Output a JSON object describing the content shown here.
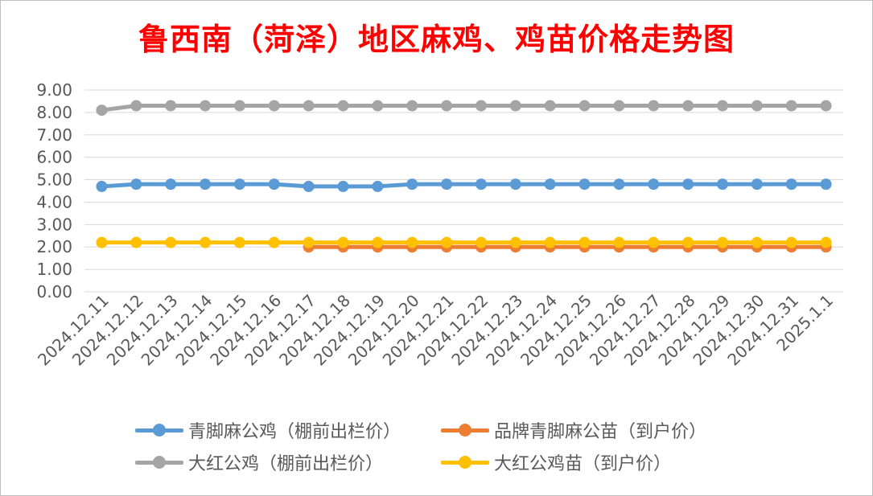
{
  "title": "鲁西南（菏泽）地区麻鸡、鸡苗价格走势图",
  "chart_data": {
    "type": "line",
    "title": "鲁西南（菏泽）地区麻鸡、鸡苗价格走势图",
    "xlabel": "",
    "ylabel": "",
    "ylim": [
      0,
      9
    ],
    "yticks": [
      "0.00",
      "1.00",
      "2.00",
      "3.00",
      "4.00",
      "5.00",
      "6.00",
      "7.00",
      "8.00",
      "9.00"
    ],
    "grid": true,
    "legend_position": "bottom",
    "categories": [
      "2024.12.11",
      "2024.12.12",
      "2024.12.13",
      "2024.12.14",
      "2024.12.15",
      "2024.12.16",
      "2024.12.17",
      "2024.12.18",
      "2024.12.19",
      "2024.12.20",
      "2024.12.21",
      "2024.12.22",
      "2024.12.23",
      "2024.12.24",
      "2024.12.25",
      "2024.12.26",
      "2024.12.27",
      "2024.12.28",
      "2024.12.29",
      "2024.12.30",
      "2024.12.31",
      "2025.1.1"
    ],
    "series": [
      {
        "name": "青脚麻公鸡（棚前出栏价）",
        "color": "#5b9bd5",
        "values": [
          4.7,
          4.8,
          4.8,
          4.8,
          4.8,
          4.8,
          4.7,
          4.7,
          4.7,
          4.8,
          4.8,
          4.8,
          4.8,
          4.8,
          4.8,
          4.8,
          4.8,
          4.8,
          4.8,
          4.8,
          4.8,
          4.8
        ]
      },
      {
        "name": "品牌青脚麻公苗（到户价）",
        "color": "#ed7d31",
        "values": [
          null,
          null,
          null,
          null,
          null,
          null,
          2.0,
          2.0,
          2.0,
          2.0,
          2.0,
          2.0,
          2.0,
          2.0,
          2.0,
          2.0,
          2.0,
          2.0,
          2.0,
          2.0,
          2.0,
          2.0
        ]
      },
      {
        "name": "大红公鸡（棚前出栏价）",
        "color": "#a5a5a5",
        "values": [
          8.1,
          8.3,
          8.3,
          8.3,
          8.3,
          8.3,
          8.3,
          8.3,
          8.3,
          8.3,
          8.3,
          8.3,
          8.3,
          8.3,
          8.3,
          8.3,
          8.3,
          8.3,
          8.3,
          8.3,
          8.3,
          8.3
        ]
      },
      {
        "name": "大红公鸡苗（到户价）",
        "color": "#ffc000",
        "values": [
          2.2,
          2.2,
          2.2,
          2.2,
          2.2,
          2.2,
          2.2,
          2.2,
          2.2,
          2.2,
          2.2,
          2.2,
          2.2,
          2.2,
          2.2,
          2.2,
          2.2,
          2.2,
          2.2,
          2.2,
          2.2,
          2.2
        ]
      }
    ],
    "legend": [
      {
        "name": "青脚麻公鸡（棚前出栏价）",
        "color": "#5b9bd5"
      },
      {
        "name": "品牌青脚麻公苗（到户价）",
        "color": "#ed7d31"
      },
      {
        "name": "大红公鸡（棚前出栏价）",
        "color": "#a5a5a5"
      },
      {
        "name": "大红公鸡苗（到户价）",
        "color": "#ffc000"
      }
    ]
  }
}
